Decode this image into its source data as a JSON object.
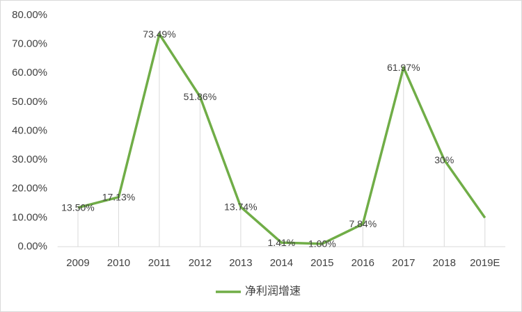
{
  "chart_data": {
    "type": "line",
    "categories": [
      "2009",
      "2010",
      "2011",
      "2012",
      "2013",
      "2014",
      "2015",
      "2016",
      "2017",
      "2018",
      "2019E"
    ],
    "series": [
      {
        "name": "净利润增速",
        "color": "#70ad47",
        "values": [
          13.5,
          17.13,
          73.49,
          51.86,
          13.74,
          1.41,
          1.0,
          7.84,
          61.97,
          30,
          10
        ],
        "value_labels": [
          "13.50%",
          "17.13%",
          "73.49%",
          "51.86%",
          "13.74%",
          "1.41%",
          "1.00%",
          "7.84%",
          "61.97%",
          "30%",
          null
        ]
      }
    ],
    "ylim": [
      0,
      80
    ],
    "yticks": [
      {
        "value": 0,
        "label": "0.00%"
      },
      {
        "value": 10,
        "label": "10.00%"
      },
      {
        "value": 20,
        "label": "20.00%"
      },
      {
        "value": 30,
        "label": "30.00%"
      },
      {
        "value": 40,
        "label": "40.00%"
      },
      {
        "value": 50,
        "label": "50.00%"
      },
      {
        "value": 60,
        "label": "60.00%"
      },
      {
        "value": 70,
        "label": "70.00%"
      },
      {
        "value": 80,
        "label": "80.00%"
      }
    ],
    "drop_lines": true,
    "legend": "bottom"
  }
}
